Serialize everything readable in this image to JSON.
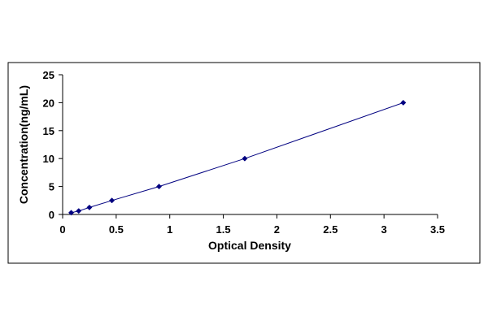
{
  "chart_data": {
    "type": "scatter",
    "title": "",
    "xlabel": "Optical Density",
    "ylabel": "Concentration(ng/mL)",
    "xlim": [
      0,
      3.5
    ],
    "ylim": [
      0,
      25
    ],
    "x_ticks": [
      "0",
      "0.5",
      "1",
      "1.5",
      "2",
      "2.5",
      "3",
      "3.5"
    ],
    "y_ticks": [
      "0",
      "5",
      "10",
      "15",
      "20",
      "25"
    ],
    "grid": false,
    "legend": "none",
    "series": [
      {
        "points": [
          {
            "x": 0.08,
            "y": 0.31
          },
          {
            "x": 0.15,
            "y": 0.63
          },
          {
            "x": 0.25,
            "y": 1.25
          },
          {
            "x": 0.46,
            "y": 2.5
          },
          {
            "x": 0.9,
            "y": 5
          },
          {
            "x": 1.7,
            "y": 10
          },
          {
            "x": 3.18,
            "y": 20
          }
        ],
        "line": true,
        "marker": "diamond",
        "color": "#000080"
      }
    ]
  }
}
